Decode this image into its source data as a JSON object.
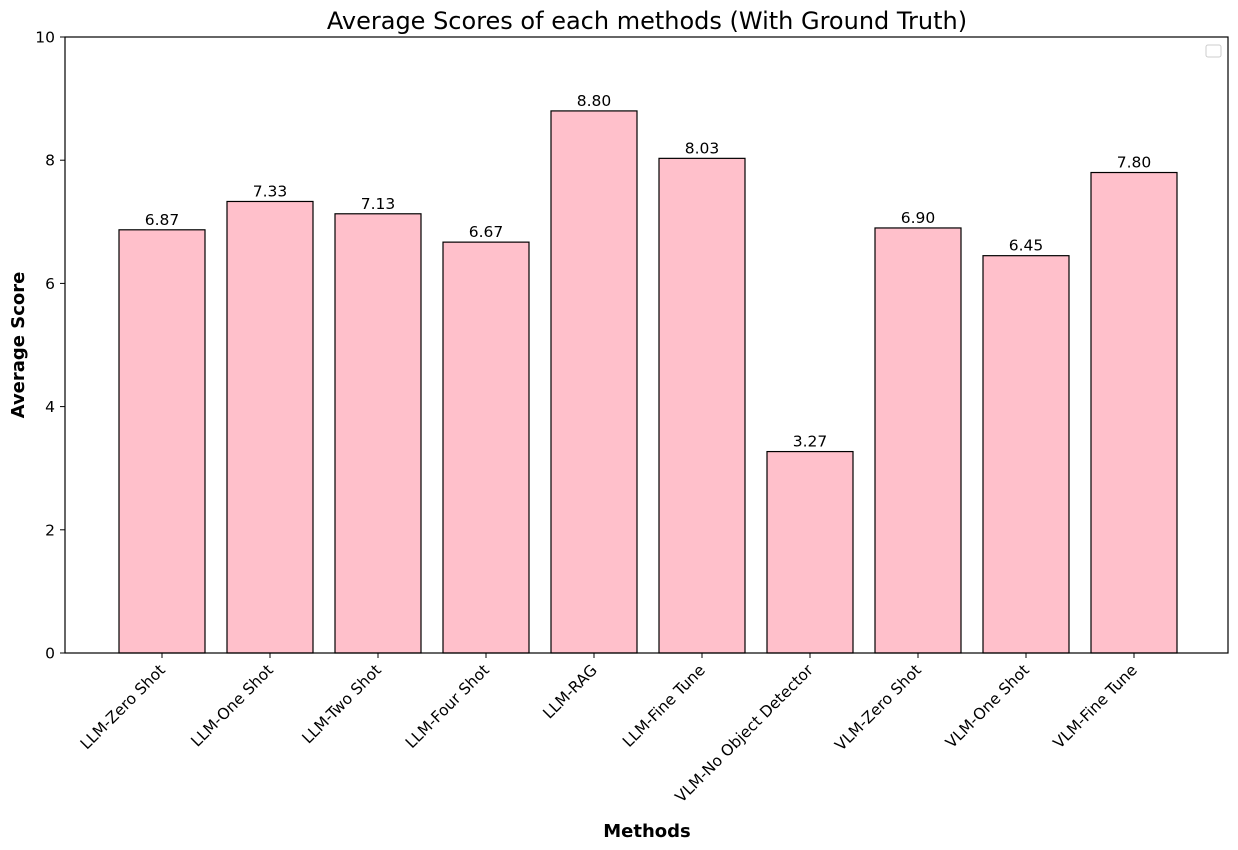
{
  "chart_data": {
    "type": "bar",
    "title": "Average Scores of each methods (With Ground Truth)",
    "xlabel": "Methods",
    "ylabel": "Average Score",
    "ylim": [
      0,
      10
    ],
    "yticks": [
      0,
      2,
      4,
      6,
      8,
      10
    ],
    "categories": [
      "LLM-Zero Shot",
      "LLM-One Shot",
      "LLM-Two Shot",
      "LLM-Four Shot",
      "LLM-RAG",
      "LLM-Fine Tune",
      "VLM-No Object Detector",
      "VLM-Zero Shot",
      "VLM-One Shot",
      "VLM-Fine Tune"
    ],
    "values": [
      6.87,
      7.33,
      7.13,
      6.67,
      8.8,
      8.03,
      3.27,
      6.9,
      6.45,
      7.8
    ],
    "value_labels": [
      "6.87",
      "7.33",
      "7.13",
      "6.67",
      "8.80",
      "8.03",
      "3.27",
      "6.90",
      "6.45",
      "7.80"
    ],
    "bar_color": "#ffc0cb",
    "edge_color": "#000000",
    "grid": false,
    "legend": "top-right (empty)"
  }
}
